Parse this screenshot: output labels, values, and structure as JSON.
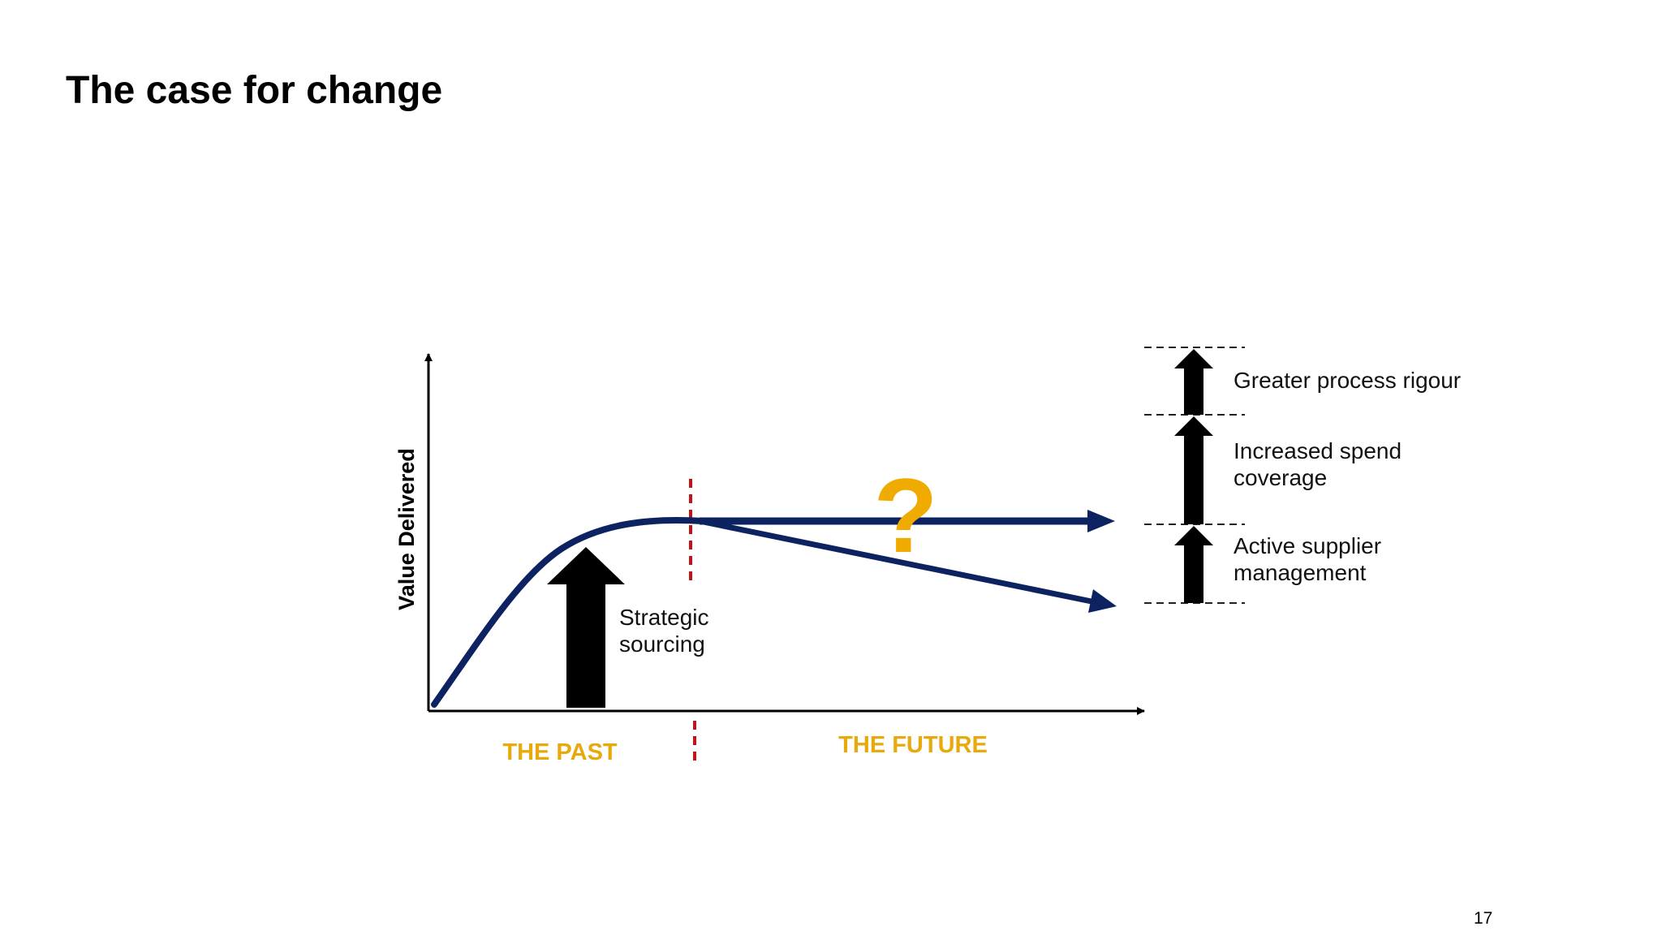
{
  "slide": {
    "title": "The case for change",
    "page_number": "17"
  },
  "diagram": {
    "y_axis_label": "Value Delivered",
    "past_label": "THE PAST",
    "future_label": "THE FUTURE",
    "uncertainty_mark": "?",
    "past_arrow_label": [
      "Strategic",
      "sourcing"
    ],
    "future_arrows": [
      {
        "lines": [
          "Greater process rigour"
        ]
      },
      {
        "lines": [
          "Increased spend",
          "coverage"
        ]
      },
      {
        "lines": [
          "Active supplier",
          "management"
        ]
      }
    ],
    "colors": {
      "curve": "#0d2260",
      "divider": "#c0141a",
      "era_label": "#e8a90c",
      "question_mark": "#f0ab00",
      "arrow": "#000000"
    }
  }
}
